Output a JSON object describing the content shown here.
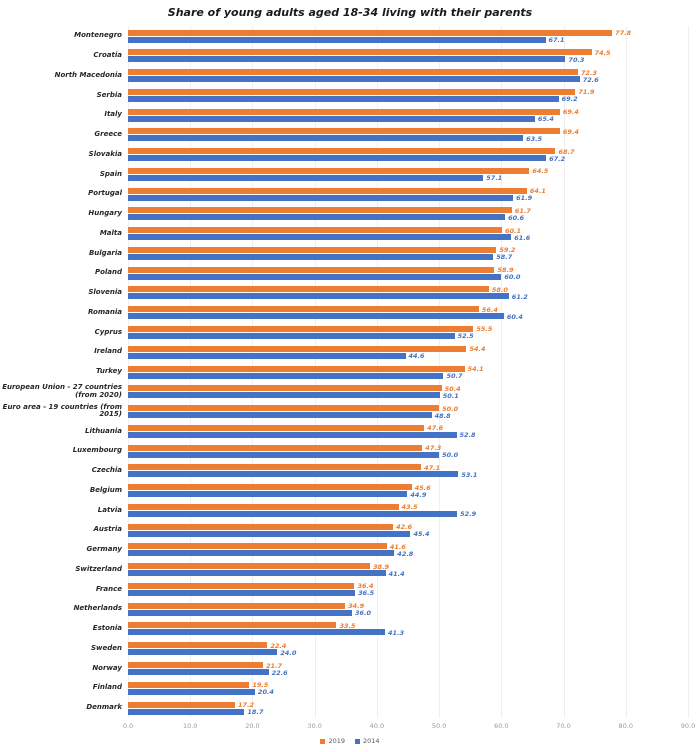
{
  "chart_data": {
    "type": "bar",
    "orientation": "horizontal",
    "title": "Share of young adults aged 18-34 living with their parents",
    "xlim": [
      0,
      90
    ],
    "x_ticks": [
      "0.0",
      "10.0",
      "20.0",
      "30.0",
      "40.0",
      "50.0",
      "60.0",
      "70.0",
      "80.0",
      "90.0"
    ],
    "grid": "vertical-light",
    "legend_position": "bottom-center",
    "categories": [
      "Montenegro",
      "Croatia",
      "North Macedonia",
      "Serbia",
      "Italy",
      "Greece",
      "Slovakia",
      "Spain",
      "Portugal",
      "Hungary",
      "Malta",
      "Bulgaria",
      "Poland",
      "Slovenia",
      "Romania",
      "Cyprus",
      "Ireland",
      "Turkey",
      "European Union - 27 countries (from 2020)",
      "Euro area - 19 countries  (from 2015)",
      "Lithuania",
      "Luxembourg",
      "Czechia",
      "Belgium",
      "Latvia",
      "Austria",
      "Germany",
      "Switzerland",
      "France",
      "Netherlands",
      "Estonia",
      "Sweden",
      "Norway",
      "Finland",
      "Denmark"
    ],
    "series": [
      {
        "name": "2019",
        "color": "#ED7D31",
        "values": [
          77.8,
          74.5,
          72.3,
          71.9,
          69.4,
          69.4,
          68.7,
          64.5,
          64.1,
          61.7,
          60.1,
          59.2,
          58.9,
          58.0,
          56.4,
          55.5,
          54.4,
          54.1,
          50.4,
          50.0,
          47.6,
          47.3,
          47.1,
          45.6,
          43.5,
          42.6,
          41.6,
          38.9,
          36.4,
          34.9,
          33.5,
          22.4,
          21.7,
          19.5,
          17.2
        ]
      },
      {
        "name": "2014",
        "color": "#4472C4",
        "values": [
          67.1,
          70.3,
          72.6,
          69.2,
          65.4,
          63.5,
          67.2,
          57.1,
          61.9,
          60.6,
          61.6,
          58.7,
          60.0,
          61.2,
          60.4,
          52.5,
          44.6,
          50.7,
          50.1,
          48.8,
          52.8,
          50.0,
          53.1,
          44.9,
          52.9,
          45.4,
          42.8,
          41.4,
          36.5,
          36.0,
          41.3,
          24.0,
          22.6,
          20.4,
          18.7
        ]
      }
    ]
  }
}
